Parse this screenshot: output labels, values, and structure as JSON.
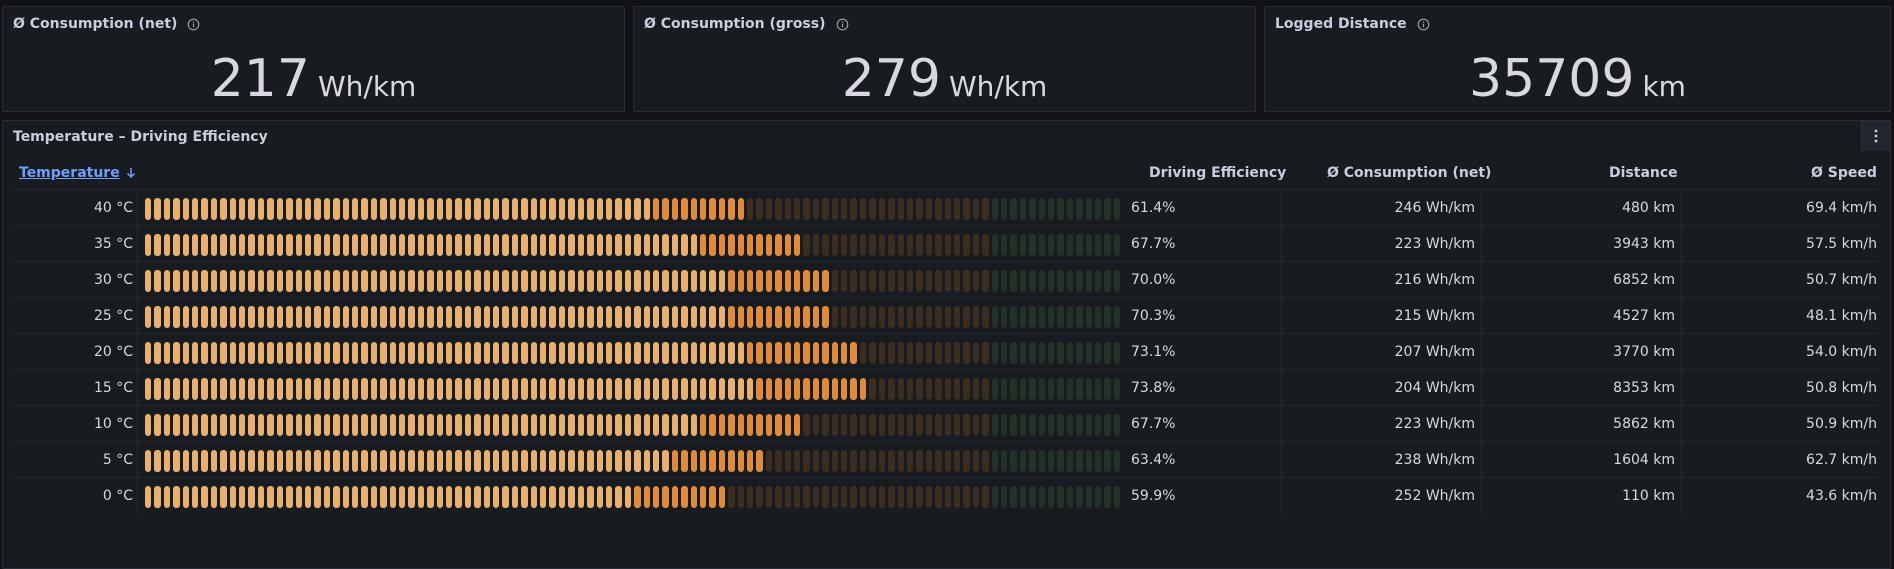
{
  "stats": [
    {
      "title": "Ø Consumption (net)",
      "value": "217",
      "unit": "Wh/km"
    },
    {
      "title": "Ø Consumption (gross)",
      "value": "279",
      "unit": "Wh/km"
    },
    {
      "title": "Logged Distance",
      "value": "35709",
      "unit": "km"
    }
  ],
  "table_panel": {
    "title": "Temperature – Driving Efficiency",
    "columns": {
      "temperature": "Temperature",
      "efficiency": "Driving Efficiency",
      "consumption": "Ø Consumption (net)",
      "distance": "Distance",
      "speed": "Ø Speed"
    },
    "rows": [
      {
        "temperature": "40 °C",
        "efficiency": "61.4%",
        "efficiency_value": 0.614,
        "consumption": "246 Wh/km",
        "distance": "480 km",
        "speed": "69.4 km/h"
      },
      {
        "temperature": "35 °C",
        "efficiency": "67.7%",
        "efficiency_value": 0.677,
        "consumption": "223 Wh/km",
        "distance": "3943 km",
        "speed": "57.5 km/h"
      },
      {
        "temperature": "30 °C",
        "efficiency": "70.0%",
        "efficiency_value": 0.7,
        "consumption": "216 Wh/km",
        "distance": "6852 km",
        "speed": "50.7 km/h"
      },
      {
        "temperature": "25 °C",
        "efficiency": "70.3%",
        "efficiency_value": 0.703,
        "consumption": "215 Wh/km",
        "distance": "4527 km",
        "speed": "48.1 km/h"
      },
      {
        "temperature": "20 °C",
        "efficiency": "73.1%",
        "efficiency_value": 0.731,
        "consumption": "207 Wh/km",
        "distance": "3770 km",
        "speed": "54.0 km/h"
      },
      {
        "temperature": "15 °C",
        "efficiency": "73.8%",
        "efficiency_value": 0.738,
        "consumption": "204 Wh/km",
        "distance": "8353 km",
        "speed": "50.8 km/h"
      },
      {
        "temperature": "10 °C",
        "efficiency": "67.7%",
        "efficiency_value": 0.677,
        "consumption": "223 Wh/km",
        "distance": "5862 km",
        "speed": "50.9 km/h"
      },
      {
        "temperature": "5 °C",
        "efficiency": "63.4%",
        "efficiency_value": 0.634,
        "consumption": "238 Wh/km",
        "distance": "1604 km",
        "speed": "62.7 km/h"
      },
      {
        "temperature": "0 °C",
        "efficiency": "59.9%",
        "efficiency_value": 0.599,
        "consumption": "252 Wh/km",
        "distance": "110 km",
        "speed": "43.6 km/h"
      }
    ]
  },
  "gauge_colors": {
    "filled_light": "#e8b070",
    "filled_dark": "#e08a3c",
    "empty_orange": "#3b2e20",
    "empty_green": "#233227"
  },
  "gauge_green_threshold": 0.87,
  "icons": {
    "info": "info-icon",
    "sort": "arrow-down-icon",
    "menu": "menu-vertical-icon"
  }
}
